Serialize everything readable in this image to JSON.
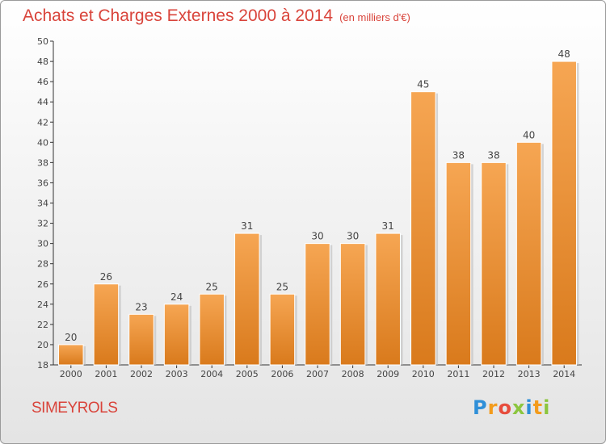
{
  "header": {
    "title": "Achats et Charges Externes 2000 à 2014",
    "subtitle": "(en milliers d'€)"
  },
  "footer": {
    "commune": "SIMEYROLS",
    "brand_letters": [
      "P",
      "r",
      "o",
      "x",
      "i",
      "t",
      "i"
    ],
    "brand_colors": [
      "#2f8fd8",
      "#f39c1d",
      "#e74c3c",
      "#8cc63f",
      "#2f8fd8",
      "#f39c1d",
      "#8cc63f"
    ]
  },
  "colors": {
    "bar_top": "#f6a653",
    "bar_bottom": "#d97a1c",
    "title": "#d9443b"
  },
  "chart_data": {
    "type": "bar",
    "categories": [
      "2000",
      "2001",
      "2002",
      "2003",
      "2004",
      "2005",
      "2006",
      "2007",
      "2008",
      "2009",
      "2010",
      "2011",
      "2012",
      "2013",
      "2014"
    ],
    "values": [
      20,
      26,
      23,
      24,
      25,
      31,
      25,
      30,
      30,
      31,
      45,
      38,
      38,
      40,
      48
    ],
    "title": "Achats et Charges Externes 2000 à 2014",
    "xlabel": "",
    "ylabel": "",
    "ylim": [
      18,
      50
    ],
    "yticks": [
      18,
      20,
      22,
      24,
      26,
      28,
      30,
      32,
      34,
      36,
      38,
      40,
      42,
      44,
      46,
      48,
      50
    ],
    "grid": false,
    "data_labels": true
  }
}
